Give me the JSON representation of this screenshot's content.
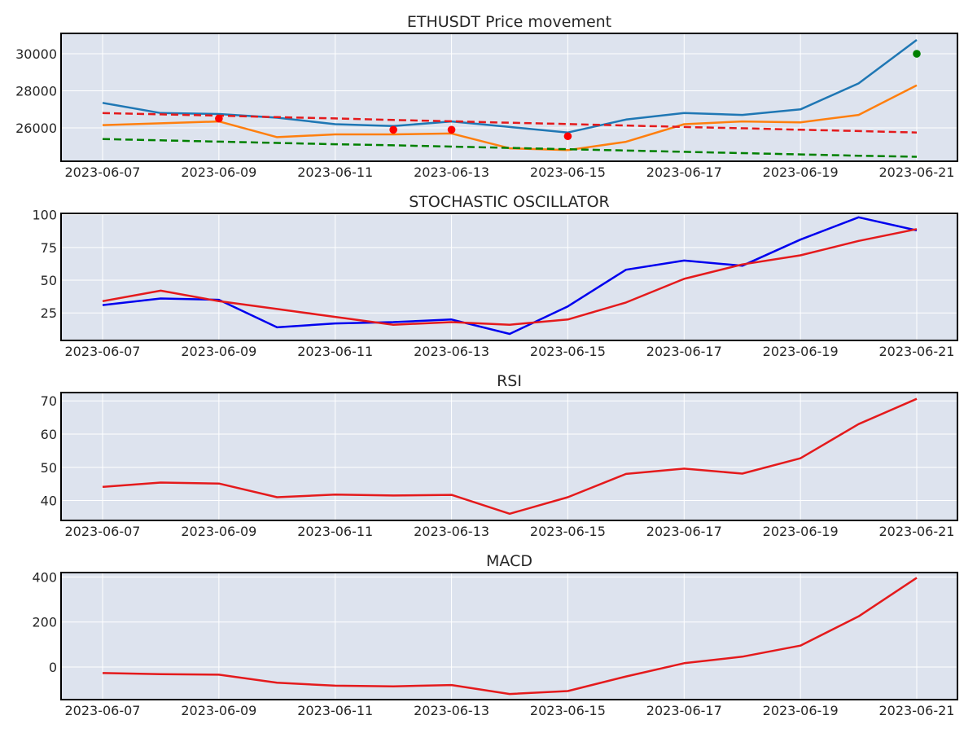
{
  "x_dates": [
    "2023-06-07",
    "2023-06-08",
    "2023-06-09",
    "2023-06-10",
    "2023-06-11",
    "2023-06-12",
    "2023-06-13",
    "2023-06-14",
    "2023-06-15",
    "2023-06-16",
    "2023-06-17",
    "2023-06-18",
    "2023-06-19",
    "2023-06-20",
    "2023-06-21"
  ],
  "colors": {
    "plot_bg": "#dde3ee",
    "close": "#1f77b4",
    "orange": "#ff7f0e",
    "red": "#e41a1c",
    "green": "#008000",
    "blue": "#0000ee"
  },
  "chart_data": [
    {
      "type": "line",
      "title": "ETHUSDT Price movement",
      "ylim": [
        24200,
        31100
      ],
      "yticks": [
        26000,
        28000,
        30000
      ],
      "xticks": [
        "2023-06-07",
        "2023-06-09",
        "2023-06-11",
        "2023-06-13",
        "2023-06-15",
        "2023-06-17",
        "2023-06-19",
        "2023-06-21"
      ],
      "grid": true,
      "series": [
        {
          "color": "#1f77b4",
          "style": "solid",
          "values": [
            27350,
            26800,
            26750,
            26550,
            26200,
            26100,
            26350,
            26050,
            25750,
            26450,
            26800,
            26700,
            27000,
            28400,
            30750
          ]
        },
        {
          "color": "#ff7f0e",
          "style": "solid",
          "values": [
            26150,
            26250,
            26350,
            25500,
            25650,
            25650,
            25700,
            24900,
            24800,
            25250,
            26200,
            26350,
            26300,
            26700,
            28300
          ]
        },
        {
          "color": "#e41a1c",
          "style": "dashed",
          "values": [
            26800,
            26730,
            26660,
            26580,
            26510,
            26430,
            26360,
            26280,
            26210,
            26130,
            26050,
            25980,
            25900,
            25830,
            25750
          ]
        },
        {
          "color": "#008000",
          "style": "dashed",
          "values": [
            25400,
            25330,
            25260,
            25190,
            25120,
            25060,
            24990,
            24920,
            24850,
            24780,
            24710,
            24640,
            24570,
            24500,
            24440
          ]
        }
      ],
      "markers": [
        {
          "date": "2023-06-09",
          "value": 26500,
          "color": "#ff0000"
        },
        {
          "date": "2023-06-12",
          "value": 25900,
          "color": "#ff0000"
        },
        {
          "date": "2023-06-13",
          "value": 25900,
          "color": "#ff0000"
        },
        {
          "date": "2023-06-15",
          "value": 25550,
          "color": "#ff0000"
        },
        {
          "date": "2023-06-21",
          "value": 30000,
          "color": "#008000"
        }
      ]
    },
    {
      "type": "line",
      "title": "STOCHASTIC OSCILLATOR",
      "ylim": [
        4,
        101
      ],
      "yticks": [
        25,
        50,
        75,
        100
      ],
      "xticks": [
        "2023-06-07",
        "2023-06-09",
        "2023-06-11",
        "2023-06-13",
        "2023-06-15",
        "2023-06-17",
        "2023-06-19",
        "2023-06-21"
      ],
      "grid": true,
      "series": [
        {
          "color": "#0000ee",
          "style": "solid",
          "values": [
            31,
            36,
            35,
            14,
            17,
            18,
            20,
            9,
            30,
            58,
            65,
            61,
            81,
            98,
            88
          ]
        },
        {
          "color": "#e41a1c",
          "style": "solid",
          "values": [
            34,
            42,
            34,
            28,
            22,
            16,
            18,
            16,
            20,
            33,
            51,
            62,
            69,
            80,
            89
          ]
        }
      ],
      "markers": []
    },
    {
      "type": "line",
      "title": "RSI",
      "ylim": [
        34,
        72.5
      ],
      "yticks": [
        40,
        50,
        60,
        70
      ],
      "xticks": [
        "2023-06-07",
        "2023-06-09",
        "2023-06-11",
        "2023-06-13",
        "2023-06-15",
        "2023-06-17",
        "2023-06-19",
        "2023-06-21"
      ],
      "grid": true,
      "series": [
        {
          "color": "#e41a1c",
          "style": "solid",
          "values": [
            44.1,
            45.4,
            45.1,
            41.0,
            41.8,
            41.5,
            41.7,
            36.0,
            41.0,
            48.0,
            49.6,
            48.1,
            52.7,
            63.0,
            70.6
          ]
        }
      ],
      "markers": []
    },
    {
      "type": "line",
      "title": "MACD",
      "ylim": [
        -145,
        420
      ],
      "yticks": [
        0,
        200,
        400
      ],
      "xticks": [
        "2023-06-07",
        "2023-06-09",
        "2023-06-11",
        "2023-06-13",
        "2023-06-15",
        "2023-06-17",
        "2023-06-19",
        "2023-06-21"
      ],
      "grid": true,
      "series": [
        {
          "color": "#e41a1c",
          "style": "solid",
          "values": [
            -27,
            -32,
            -34,
            -70,
            -83,
            -86,
            -80,
            -120,
            -107,
            -42,
            17,
            46,
            95,
            225,
            397
          ]
        }
      ],
      "markers": []
    }
  ]
}
